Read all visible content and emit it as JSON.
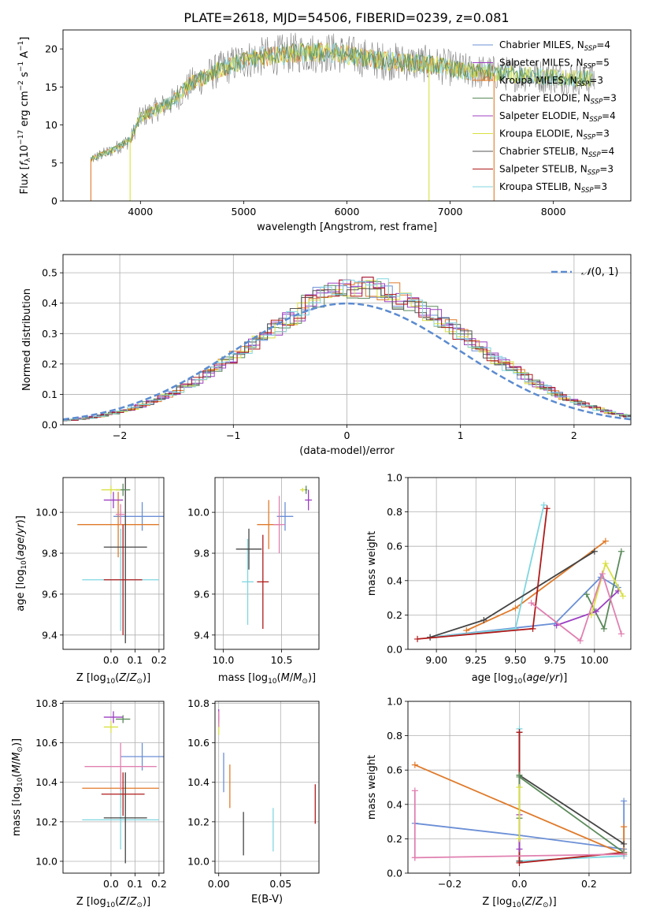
{
  "title": "PLATE=2618, MJD=54506, FIBERID=0239, z=0.081",
  "colors": [
    "#4682b4",
    "#8a2be2",
    "#ff8c00",
    "#2e8b57",
    "#9400d3",
    "#dddd33",
    "#555555",
    "#b22222",
    "#66cccc"
  ],
  "chart_data": [
    {
      "id": "spectrum",
      "type": "line",
      "xlabel": "wavelength [Angstrom, rest frame]",
      "ylabel": "Flux [f_λ10^-17 erg cm^-2 s^-1 A^-1]",
      "xlim": [
        3250,
        8750
      ],
      "ylim": [
        0,
        22.5
      ],
      "xticks": [
        4000,
        5000,
        6000,
        7000,
        8000
      ],
      "yticks": [
        0,
        5,
        10,
        15,
        20
      ],
      "legend_loc": "upper right",
      "series": [
        {
          "name": "Chabrier MILES, N_SSP=4",
          "color": "#6b8fd6"
        },
        {
          "name": "Salpeter MILES, N_SSP=5",
          "color": "#9b3fc2"
        },
        {
          "name": "Kroupa MILES, N_SSP=3",
          "color": "#e07a2a"
        },
        {
          "name": "Chabrier ELODIE, N_SSP=3",
          "color": "#5a8a5a"
        },
        {
          "name": "Salpeter ELODIE, N_SSP=4",
          "color": "#a040c0"
        },
        {
          "name": "Kroupa ELODIE, N_SSP=3",
          "color": "#d8e040"
        },
        {
          "name": "Chabrier STELIB, N_SSP=4",
          "color": "#555555"
        },
        {
          "name": "Salpeter STELIB, N_SSP=3",
          "color": "#b01a1a"
        },
        {
          "name": "Kroupa STELIB, N_SSP=3",
          "color": "#7fd6e0"
        }
      ],
      "continuum": [
        [
          3520,
          5.5
        ],
        [
          3700,
          6.5
        ],
        [
          3900,
          8
        ],
        [
          4000,
          11
        ],
        [
          4300,
          13
        ],
        [
          4500,
          15.5
        ],
        [
          4800,
          17.5
        ],
        [
          5000,
          18.5
        ],
        [
          5200,
          19
        ],
        [
          5500,
          19.5
        ],
        [
          5900,
          19.5
        ],
        [
          6300,
          18.5
        ],
        [
          6800,
          18
        ],
        [
          7200,
          17
        ],
        [
          7500,
          16.8
        ],
        [
          8000,
          16.3
        ],
        [
          8400,
          16
        ]
      ]
    },
    {
      "id": "residuals",
      "type": "histogram",
      "xlabel": "(data-model)/error",
      "ylabel": "Normed distribution",
      "xlim": [
        -2.5,
        2.5
      ],
      "ylim": [
        0,
        0.56
      ],
      "xticks": [
        -2,
        -1,
        0,
        1,
        2
      ],
      "yticks": [
        0.0,
        0.1,
        0.2,
        0.3,
        0.4,
        0.5
      ],
      "legend": "N(0,1)",
      "reference": {
        "type": "gaussian",
        "mean": 0,
        "sigma": 1,
        "color": "#5b8bd0"
      }
    },
    {
      "id": "age-vs-Z",
      "type": "errorbar",
      "xlabel": "Z [log10(Z/Z⊙)]",
      "ylabel": "age [log10(age/yr)]",
      "xlim": [
        -0.2,
        0.22
      ],
      "ylim": [
        9.33,
        10.17
      ],
      "xticks": [
        0.0,
        0.1,
        0.2
      ],
      "yticks": [
        9.4,
        9.6,
        9.8,
        10.0
      ],
      "points": [
        {
          "x": 0.13,
          "y": 9.98,
          "xerr": 0.12,
          "yerr": 0.07,
          "color": "#6b8fd6"
        },
        {
          "x": 0.03,
          "y": 9.94,
          "xerr": 0.17,
          "yerr": 0.16,
          "color": "#e07a2a"
        },
        {
          "x": 0.04,
          "y": 9.67,
          "xerr": 0.16,
          "yerr": 0.25,
          "color": "#7fd6e0"
        },
        {
          "x": 0.06,
          "y": 9.83,
          "xerr": 0.09,
          "yerr": 0.47,
          "color": "#444444"
        },
        {
          "x": 0.05,
          "y": 9.67,
          "xerr": 0.08,
          "yerr": 0.27,
          "color": "#b01a1a"
        },
        {
          "x": 0.05,
          "y": 10.11,
          "xerr": 0.03,
          "yerr": 0.03,
          "color": "#5a8a5a"
        },
        {
          "x": 0.01,
          "y": 10.06,
          "xerr": 0.04,
          "yerr": 0.04,
          "color": "#9b3fc2"
        },
        {
          "x": 0.0,
          "y": 10.11,
          "xerr": 0.04,
          "yerr": 0.02,
          "color": "#d8e040"
        },
        {
          "x": 0.04,
          "y": 9.99,
          "xerr": 0.02,
          "yerr": 0.05,
          "color": "#e080b0"
        }
      ]
    },
    {
      "id": "age-vs-mass",
      "type": "errorbar",
      "xlabel": "mass [log10(M/M⊙)]",
      "ylabel": "",
      "xlim": [
        9.93,
        10.82
      ],
      "ylim": [
        9.33,
        10.17
      ],
      "xticks": [
        10.0,
        10.5
      ],
      "yticks": [
        9.4,
        9.6,
        9.8,
        10.0
      ],
      "points": [
        {
          "x": 10.53,
          "y": 9.98,
          "xerr": 0.07,
          "yerr": 0.07,
          "color": "#6b8fd6"
        },
        {
          "x": 10.39,
          "y": 9.94,
          "xerr": 0.1,
          "yerr": 0.12,
          "color": "#e07a2a"
        },
        {
          "x": 10.21,
          "y": 9.66,
          "xerr": 0.05,
          "yerr": 0.21,
          "color": "#7fd6e0"
        },
        {
          "x": 10.22,
          "y": 9.82,
          "xerr": 0.11,
          "yerr": 0.1,
          "color": "#444444"
        },
        {
          "x": 10.34,
          "y": 9.66,
          "xerr": 0.05,
          "yerr": 0.23,
          "color": "#b01a1a"
        },
        {
          "x": 10.71,
          "y": 10.11,
          "xerr": 0.01,
          "yerr": 0.02,
          "color": "#5a8a5a"
        },
        {
          "x": 10.73,
          "y": 10.06,
          "xerr": 0.03,
          "yerr": 0.05,
          "color": "#9b3fc2"
        },
        {
          "x": 10.68,
          "y": 10.11,
          "xerr": 0.02,
          "yerr": 0.01,
          "color": "#d8e040"
        },
        {
          "x": 10.48,
          "y": 9.94,
          "xerr": 0.05,
          "yerr": 0.14,
          "color": "#e080b0"
        }
      ]
    },
    {
      "id": "weight-vs-age",
      "type": "line",
      "xlabel": "age [log10(age/yr)]",
      "ylabel": "mass weight",
      "xlim": [
        8.82,
        10.23
      ],
      "ylim": [
        0.0,
        1.0
      ],
      "xticks": [
        9.0,
        9.25,
        9.5,
        9.75,
        10.0
      ],
      "yticks": [
        0.0,
        0.2,
        0.4,
        0.6,
        0.8,
        1.0
      ],
      "series": [
        {
          "color": "#6b8fd6",
          "x": [
            8.96,
            9.75,
            10.04,
            10.15
          ],
          "y": [
            0.07,
            0.15,
            0.42,
            0.36
          ]
        },
        {
          "color": "#e07a2a",
          "x": [
            9.19,
            9.5,
            10.07
          ],
          "y": [
            0.11,
            0.24,
            0.63
          ]
        },
        {
          "color": "#7fd6e0",
          "x": [
            8.96,
            9.5,
            9.68
          ],
          "y": [
            0.07,
            0.12,
            0.84
          ]
        },
        {
          "color": "#444444",
          "x": [
            8.96,
            9.3,
            10.0
          ],
          "y": [
            0.07,
            0.17,
            0.57
          ]
        },
        {
          "color": "#b01a1a",
          "x": [
            8.88,
            9.61,
            9.7
          ],
          "y": [
            0.06,
            0.12,
            0.82
          ]
        },
        {
          "color": "#5a8a5a",
          "x": [
            9.95,
            10.06,
            10.17
          ],
          "y": [
            0.32,
            0.12,
            0.57
          ]
        },
        {
          "color": "#9b3fc2",
          "x": [
            9.76,
            10.01,
            10.15
          ],
          "y": [
            0.14,
            0.22,
            0.34
          ]
        },
        {
          "color": "#d8e040",
          "x": [
            9.98,
            10.07,
            10.18
          ],
          "y": [
            0.2,
            0.5,
            0.31
          ]
        },
        {
          "color": "#e080b0",
          "x": [
            9.6,
            9.91,
            10.05,
            10.17
          ],
          "y": [
            0.27,
            0.05,
            0.44,
            0.09
          ]
        }
      ]
    },
    {
      "id": "mass-vs-Z",
      "type": "errorbar",
      "xlabel": "Z [log10(Z/Z⊙)]",
      "ylabel": "mass [log10(M/M⊙)]",
      "xlim": [
        -0.2,
        0.22
      ],
      "ylim": [
        9.94,
        10.81
      ],
      "xticks": [
        0.0,
        0.1,
        0.2
      ],
      "yticks": [
        10.0,
        10.2,
        10.4,
        10.6,
        10.8
      ],
      "points": [
        {
          "x": 0.13,
          "y": 10.53,
          "xerr": 0.09,
          "yerr": 0.07,
          "color": "#6b8fd6"
        },
        {
          "x": 0.04,
          "y": 10.37,
          "xerr": 0.16,
          "yerr": 0.1,
          "color": "#e07a2a"
        },
        {
          "x": 0.04,
          "y": 10.21,
          "xerr": 0.16,
          "yerr": 0.15,
          "color": "#7fd6e0"
        },
        {
          "x": 0.06,
          "y": 10.22,
          "xerr": 0.09,
          "yerr": 0.23,
          "color": "#444444"
        },
        {
          "x": 0.05,
          "y": 10.34,
          "xerr": 0.09,
          "yerr": 0.11,
          "color": "#b01a1a"
        },
        {
          "x": 0.05,
          "y": 10.72,
          "xerr": 0.03,
          "yerr": 0.02,
          "color": "#5a8a5a"
        },
        {
          "x": 0.01,
          "y": 10.73,
          "xerr": 0.04,
          "yerr": 0.03,
          "color": "#9b3fc2"
        },
        {
          "x": 0.0,
          "y": 10.68,
          "xerr": 0.03,
          "yerr": 0.03,
          "color": "#d8e040"
        },
        {
          "x": 0.04,
          "y": 10.48,
          "xerr": 0.15,
          "yerr": 0.12,
          "color": "#e080b0"
        }
      ]
    },
    {
      "id": "mass-vs-EBV",
      "type": "errorbar",
      "xlabel": "E(B-V)",
      "ylabel": "",
      "xlim": [
        -0.003,
        0.081
      ],
      "ylim": [
        9.94,
        10.81
      ],
      "xticks": [
        0.0,
        0.05
      ],
      "yticks": [
        10.0,
        10.2,
        10.4,
        10.6,
        10.8
      ],
      "points": [
        {
          "x": 0.004,
          "y": 10.45,
          "xerr": 0,
          "yerr": 0.1,
          "color": "#6b8fd6"
        },
        {
          "x": 0.009,
          "y": 10.38,
          "xerr": 0,
          "yerr": 0.11,
          "color": "#e07a2a"
        },
        {
          "x": 0.044,
          "y": 10.16,
          "xerr": 0,
          "yerr": 0.11,
          "color": "#7fd6e0"
        },
        {
          "x": 0.02,
          "y": 10.14,
          "xerr": 0,
          "yerr": 0.11,
          "color": "#444444"
        },
        {
          "x": 0.078,
          "y": 10.29,
          "xerr": 0,
          "yerr": 0.1,
          "color": "#b01a1a"
        },
        {
          "x": 0.0,
          "y": 10.71,
          "xerr": 0,
          "yerr": 0.03,
          "color": "#5a8a5a"
        },
        {
          "x": 0.0,
          "y": 10.74,
          "xerr": 0,
          "yerr": 0.03,
          "color": "#9b3fc2"
        },
        {
          "x": 0.0,
          "y": 10.67,
          "xerr": 0,
          "yerr": 0.03,
          "color": "#d8e040"
        },
        {
          "x": 0.0,
          "y": 10.72,
          "xerr": 0,
          "yerr": 0.04,
          "color": "#e080b0"
        }
      ]
    },
    {
      "id": "weight-vs-Z",
      "type": "line",
      "xlabel": "Z [log10(Z/Z⊙)]",
      "ylabel": "mass weight",
      "xlim": [
        -0.32,
        0.32
      ],
      "ylim": [
        0.0,
        1.0
      ],
      "xticks": [
        -0.2,
        0.0,
        0.2
      ],
      "yticks": [
        0.0,
        0.2,
        0.4,
        0.6,
        0.8,
        1.0
      ],
      "series": [
        {
          "color": "#6b8fd6",
          "x": [
            -0.3,
            0.0,
            0.3
          ],
          "y": [
            0.29,
            0.22,
            0.14
          ]
        },
        {
          "color": "#6b8fd6",
          "x": [
            0.3,
            0.3
          ],
          "y": [
            0.42,
            0.1
          ]
        },
        {
          "color": "#e07a2a",
          "x": [
            -0.3,
            0.3
          ],
          "y": [
            0.63,
            0.11
          ]
        },
        {
          "color": "#e07a2a",
          "x": [
            0.3,
            0.3
          ],
          "y": [
            0.27,
            0.11
          ]
        },
        {
          "color": "#7fd6e0",
          "x": [
            0.0,
            0.3
          ],
          "y": [
            0.07,
            0.1
          ]
        },
        {
          "color": "#7fd6e0",
          "x": [
            0.0,
            0.0
          ],
          "y": [
            0.84,
            0.07
          ]
        },
        {
          "color": "#444444",
          "x": [
            0.0,
            0.3
          ],
          "y": [
            0.57,
            0.17
          ]
        },
        {
          "color": "#444444",
          "x": [
            0.0,
            0.0
          ],
          "y": [
            0.82,
            0.07
          ]
        },
        {
          "color": "#b01a1a",
          "x": [
            0.0,
            0.3
          ],
          "y": [
            0.06,
            0.12
          ]
        },
        {
          "color": "#b01a1a",
          "x": [
            0.0,
            0.0
          ],
          "y": [
            0.82,
            0.06
          ]
        },
        {
          "color": "#5a8a5a",
          "x": [
            0.0,
            0.3
          ],
          "y": [
            0.56,
            0.12
          ]
        },
        {
          "color": "#5a8a5a",
          "x": [
            0.0,
            0.0
          ],
          "y": [
            0.57,
            0.32
          ]
        },
        {
          "color": "#9b3fc2",
          "x": [
            0.0,
            0.0
          ],
          "y": [
            0.34,
            0.14
          ]
        },
        {
          "color": "#d8e040",
          "x": [
            0.0,
            0.0
          ],
          "y": [
            0.5,
            0.2
          ]
        },
        {
          "color": "#e080b0",
          "x": [
            -0.3,
            0.3
          ],
          "y": [
            0.09,
            0.11
          ]
        },
        {
          "color": "#e080b0",
          "x": [
            -0.3,
            -0.3
          ],
          "y": [
            0.48,
            0.09
          ]
        }
      ]
    }
  ]
}
